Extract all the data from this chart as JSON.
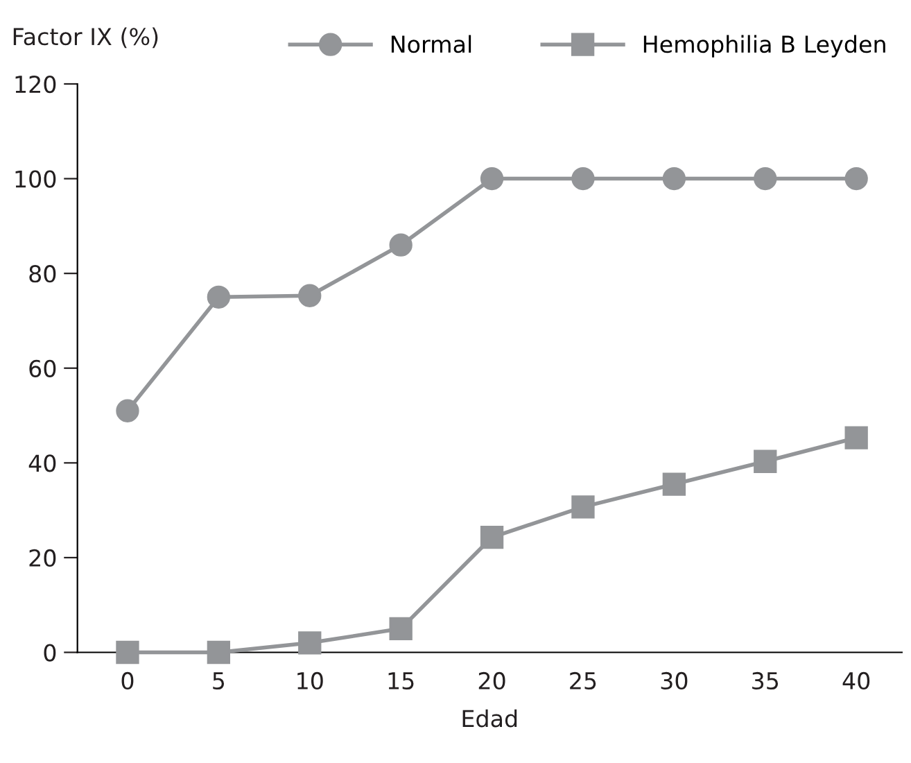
{
  "chart_data": {
    "type": "line",
    "xlabel": "Edad",
    "ylabel": "Factor IX (%)",
    "categories": [
      "0",
      "5",
      "10",
      "15",
      "20",
      "25",
      "30",
      "35",
      "40"
    ],
    "series": [
      {
        "name": "Normal",
        "color": "#939598",
        "marker": "circle",
        "values": [
          51,
          75,
          75.3,
          86,
          100,
          100,
          100,
          100,
          100
        ]
      },
      {
        "name": "Hemophilia B Leyden",
        "color": "#939598",
        "marker": "square",
        "values": [
          0,
          0,
          2,
          5,
          24.3,
          30.7,
          35.5,
          40.3,
          45.3
        ]
      }
    ],
    "ylim": [
      0,
      120
    ],
    "yticks": [
      0,
      20,
      40,
      60,
      80,
      100,
      120
    ],
    "grid": false,
    "legend": "top",
    "line_style": "solid"
  }
}
